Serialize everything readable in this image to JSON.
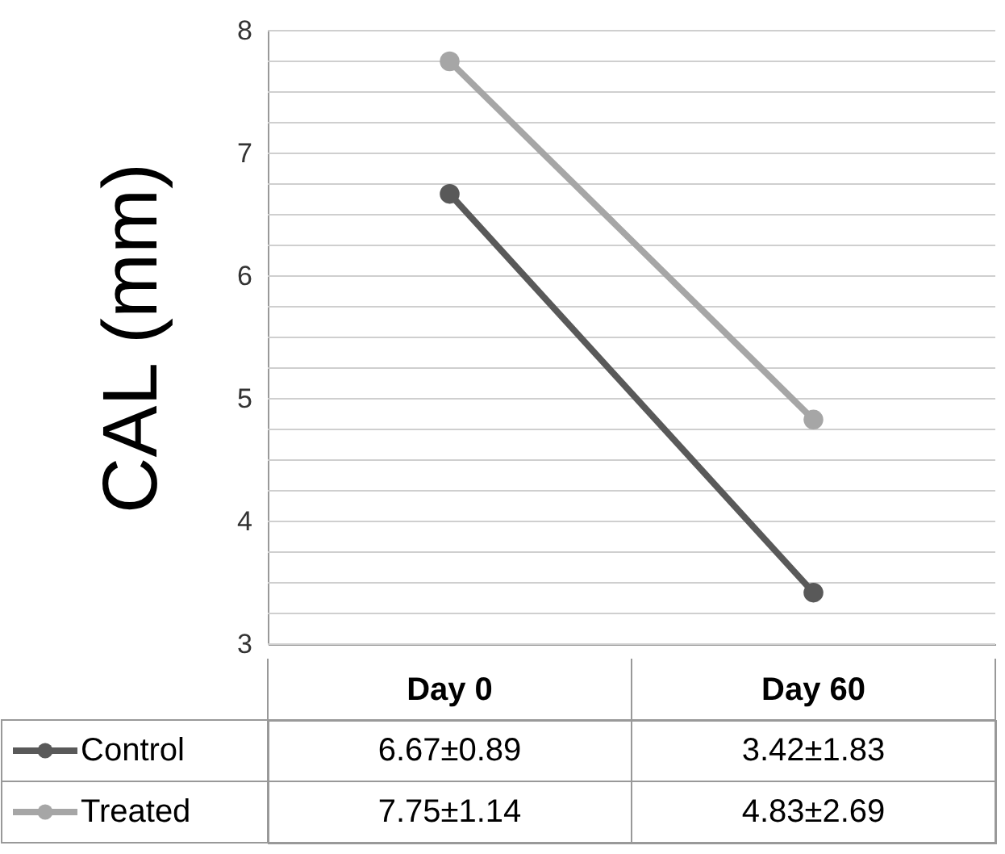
{
  "chart_data": {
    "type": "line",
    "ylabel": "CAL (mm)",
    "categories": [
      "Day 0",
      "Day 60"
    ],
    "series": [
      {
        "name": "Control",
        "color": "#595959",
        "values": [
          6.67,
          3.42
        ],
        "value_labels": [
          "6.67±0.89",
          "3.42±1.83"
        ]
      },
      {
        "name": "Treated",
        "color": "#a6a6a6",
        "values": [
          7.75,
          4.83
        ],
        "value_labels": [
          "7.75±1.14",
          "4.83±2.69"
        ]
      }
    ],
    "ylim": [
      3,
      8
    ],
    "yticks": [
      3,
      {
        "value": 3.25,
        "label": null
      },
      {
        "value": 3.5,
        "label": null
      },
      {
        "value": 3.75,
        "label": null
      },
      4,
      {
        "value": 4.25,
        "label": null
      },
      {
        "value": 4.5,
        "label": null
      },
      {
        "value": 4.75,
        "label": null
      },
      5,
      {
        "value": 5.25,
        "label": null
      },
      {
        "value": 5.5,
        "label": null
      },
      {
        "value": 5.75,
        "label": null
      },
      6,
      {
        "value": 6.25,
        "label": null
      },
      {
        "value": 6.5,
        "label": null
      },
      {
        "value": 6.75,
        "label": null
      },
      7,
      {
        "value": 7.25,
        "label": null
      },
      {
        "value": 7.5,
        "label": null
      },
      {
        "value": 7.75,
        "label": null
      },
      8
    ],
    "grid": "y",
    "legend": "bottom left",
    "marker": "circle",
    "line_style": "solid"
  }
}
